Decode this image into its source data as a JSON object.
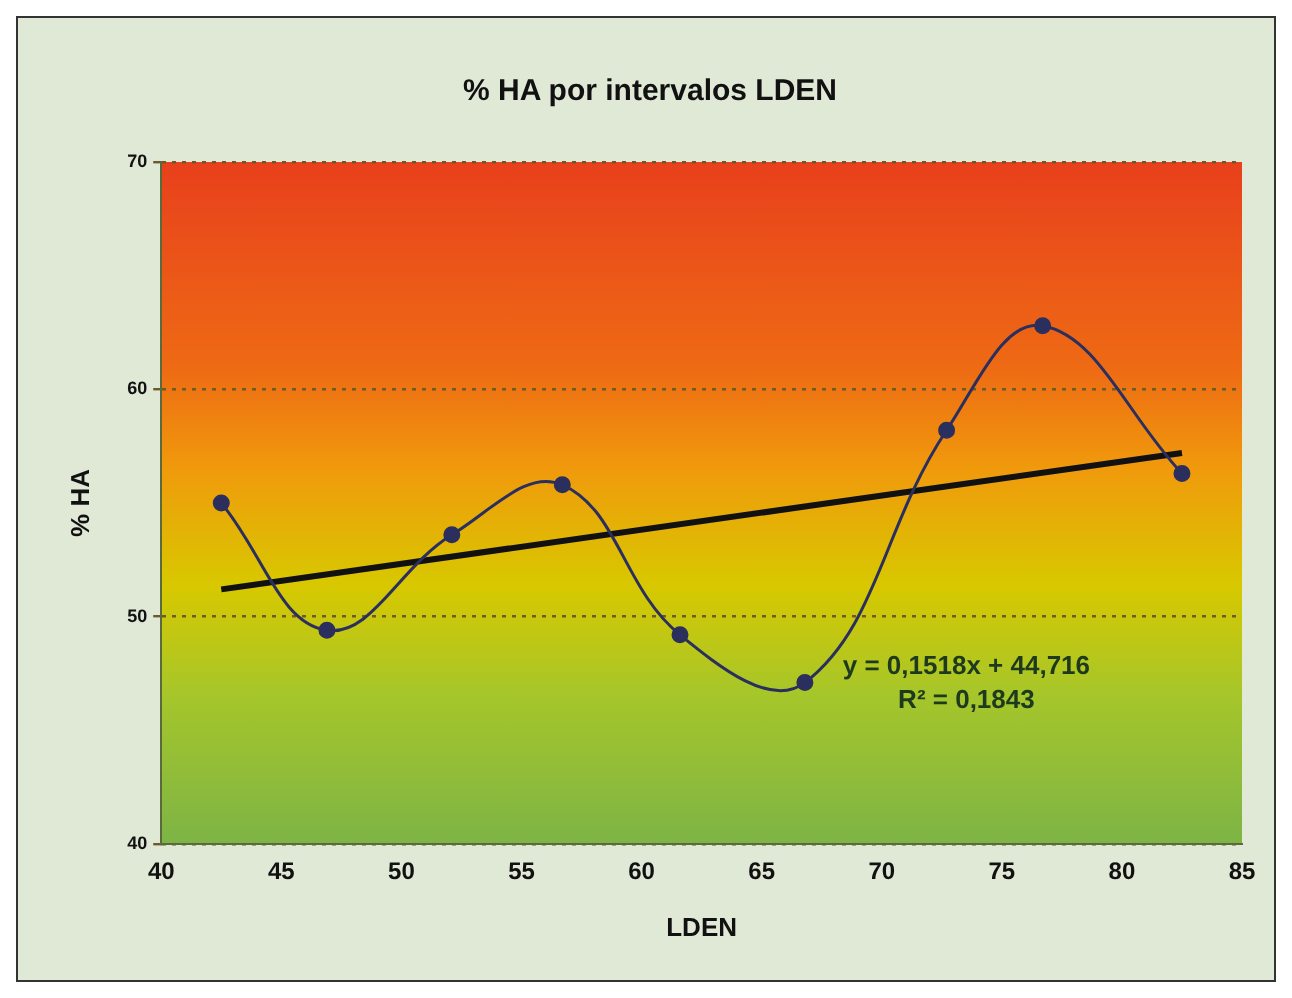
{
  "chart_data": {
    "type": "line",
    "title": "% HA por intervalos LDEN",
    "xlabel": "LDEN",
    "ylabel": "% HA",
    "xlim": [
      40,
      85
    ],
    "xticks": [
      40,
      45,
      50,
      55,
      60,
      65,
      70,
      75,
      80,
      85
    ],
    "ylim": [
      40,
      70
    ],
    "yticks": [
      40,
      50,
      60,
      70
    ],
    "grid": "y",
    "legend": false,
    "marker": "circle",
    "series": [
      {
        "color": "#2a2f5e",
        "x": [
          42.5,
          46.9,
          52.1,
          56.7,
          61.6,
          66.8,
          72.7,
          76.7,
          82.5
        ],
        "values": [
          55,
          49.4,
          53.6,
          55.8,
          49.2,
          47.1,
          58.2,
          62.8,
          56.3
        ]
      },
      {
        "color": "#111111",
        "marker": "none",
        "x": [
          42.5,
          82.5
        ],
        "values": [
          51.2,
          57.2
        ]
      }
    ],
    "annotations": [
      "y = 0,1518x + 44,716",
      "R² = 0,1843"
    ]
  }
}
